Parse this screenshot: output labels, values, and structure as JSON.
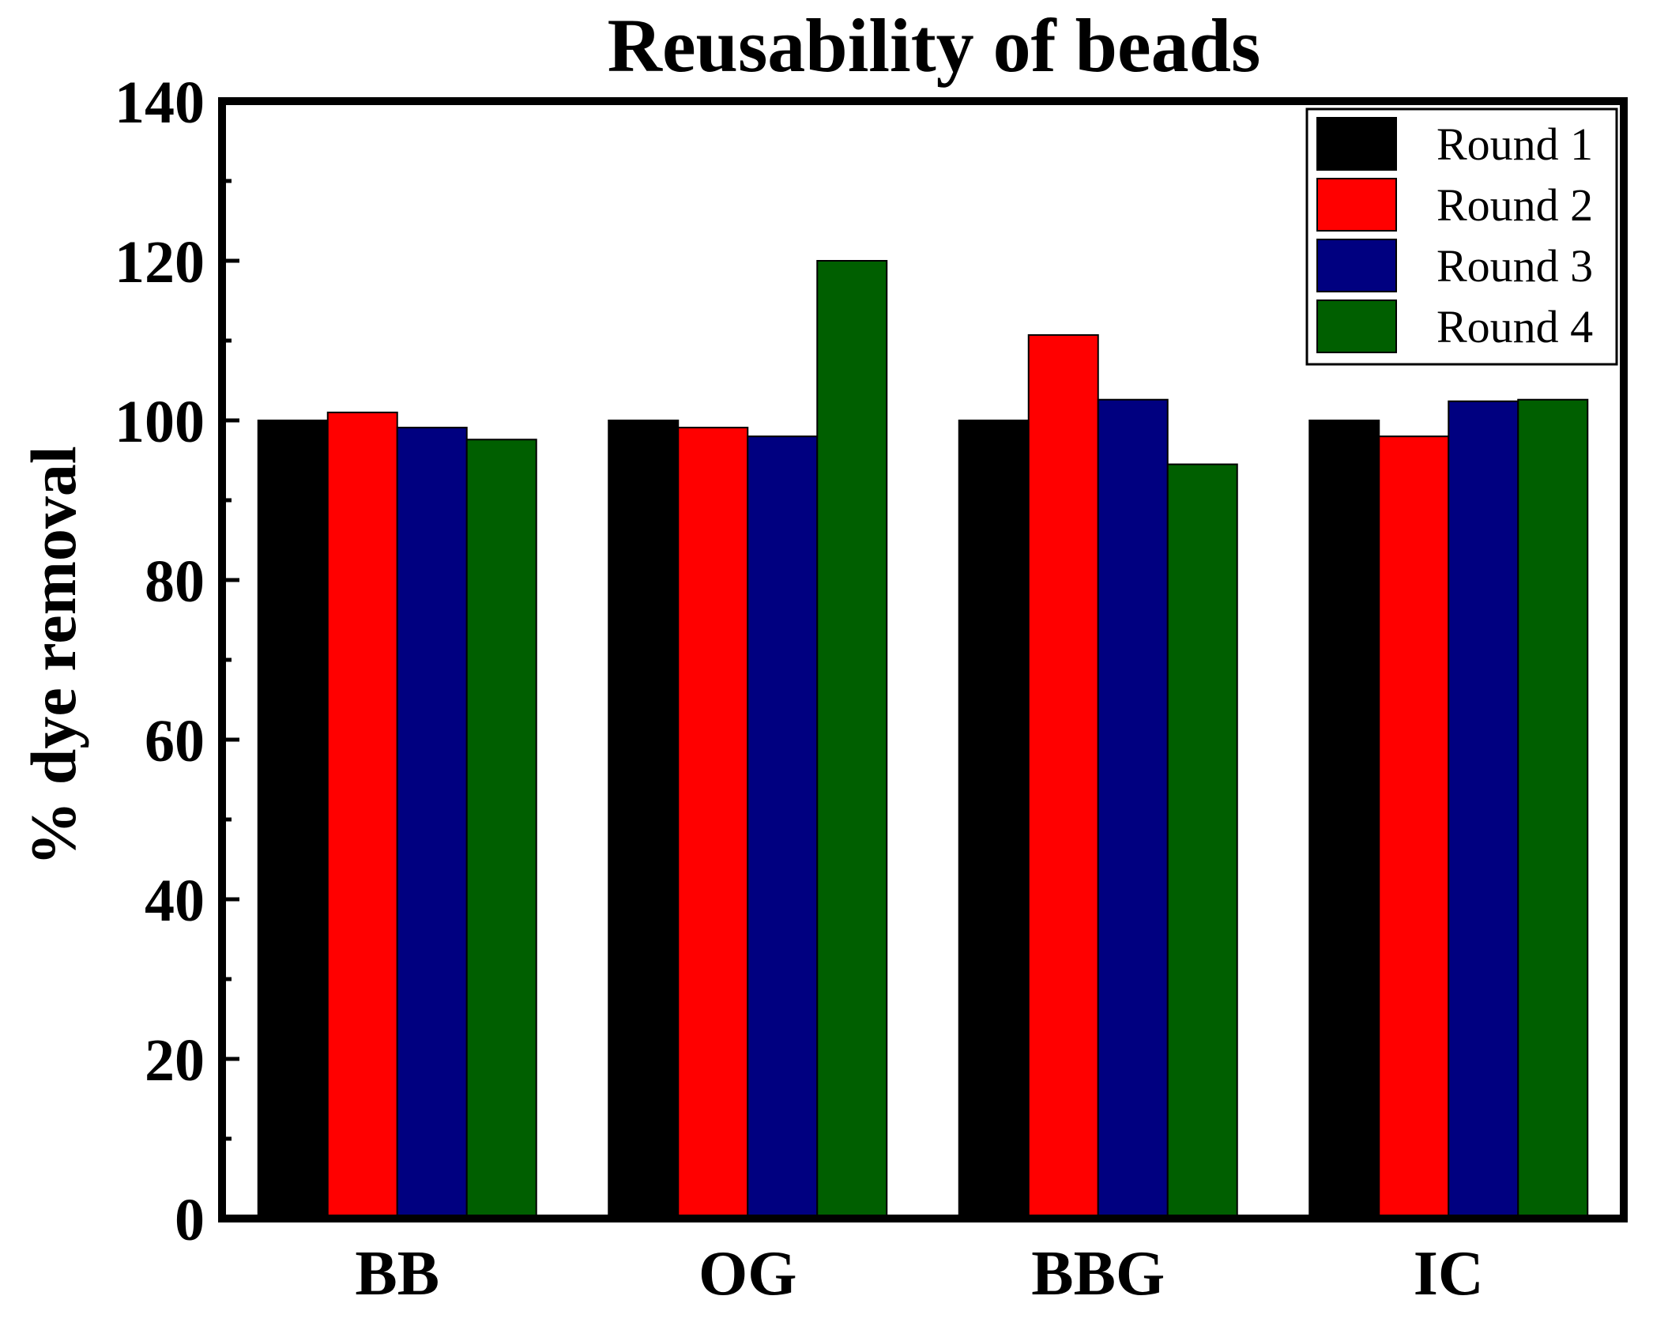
{
  "chart_data": {
    "type": "bar",
    "title": "Reusability of beads",
    "xlabel": "",
    "ylabel": "% dye removal",
    "categories": [
      "BB",
      "OG",
      "BBG",
      "IC"
    ],
    "ylim": [
      0,
      140
    ],
    "yticks": [
      0,
      20,
      40,
      60,
      80,
      100,
      120,
      140
    ],
    "grid": false,
    "legend_position": "top-right",
    "series": [
      {
        "name": "Round 1",
        "color": "#000000",
        "values": [
          100,
          100,
          100,
          100
        ]
      },
      {
        "name": "Round 2",
        "color": "#ff0000",
        "values": [
          101,
          99.1,
          110.7,
          98
        ]
      },
      {
        "name": "Round 3",
        "color": "#000080",
        "values": [
          99.1,
          98,
          102.6,
          102.4
        ]
      },
      {
        "name": "Round 4",
        "color": "#005f00",
        "values": [
          97.6,
          120,
          94.5,
          102.6
        ]
      }
    ]
  }
}
